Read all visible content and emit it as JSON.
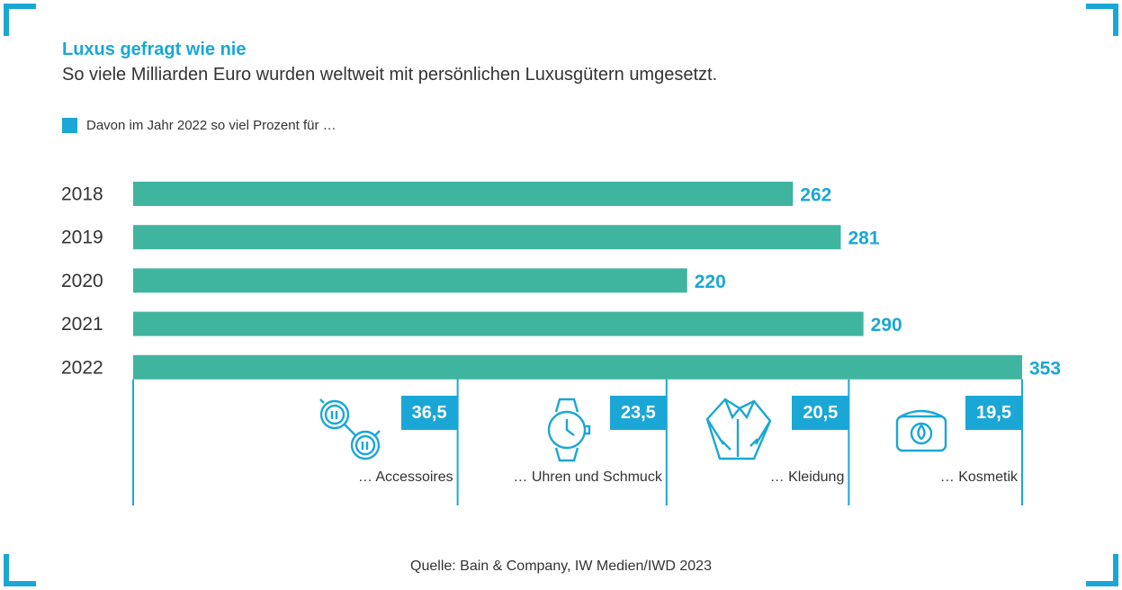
{
  "header": {
    "title": "Luxus gefragt wie nie",
    "subtitle": "So viele Milliarden Euro wurden weltweit mit persönlichen Luxusgütern umgesetzt."
  },
  "legend": {
    "label": "Davon im Jahr 2022 so viel Prozent für …",
    "color": "#1aa7d6"
  },
  "chart_data": {
    "type": "bar",
    "orientation": "horizontal",
    "categories": [
      "2018",
      "2019",
      "2020",
      "2021",
      "2022"
    ],
    "values": [
      262,
      281,
      220,
      290,
      353
    ],
    "value_labels": [
      "262",
      "281",
      "220",
      "290",
      "353"
    ],
    "bar_color": "#3fb5a0",
    "label_color": "#1aa7d6",
    "xlim": [
      0,
      353
    ],
    "breakdown_2022": {
      "categories": [
        "… Accessoires",
        "… Uhren und Schmuck",
        "… Kleidung",
        "… Kosmetik"
      ],
      "values": [
        36.5,
        23.5,
        20.5,
        19.5
      ],
      "value_labels": [
        "36,5",
        "23,5",
        "20,5",
        "19,5"
      ],
      "icons": [
        "sunglasses-icon",
        "watch-icon",
        "shirt-icon",
        "cosmetics-jar-icon"
      ]
    }
  },
  "source": "Quelle: Bain & Company, IW Medien/IWD 2023"
}
